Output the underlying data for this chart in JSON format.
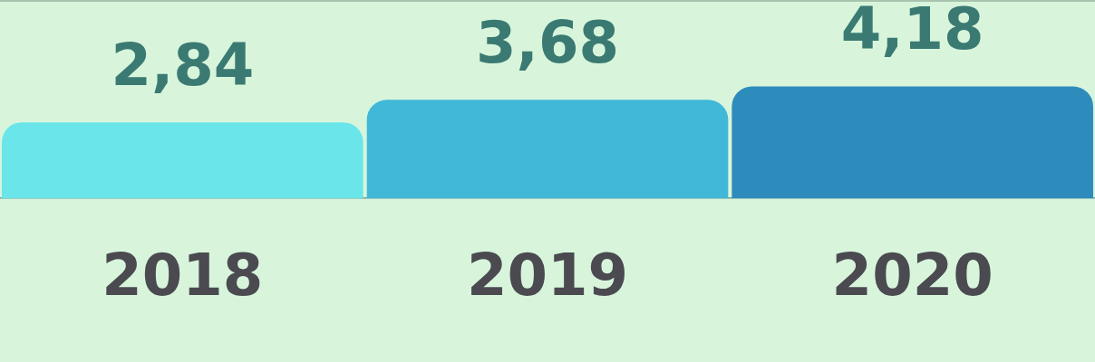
{
  "chart_data": {
    "type": "bar",
    "categories": [
      "2018",
      "2019",
      "2020"
    ],
    "values": [
      2.84,
      3.68,
      4.18
    ],
    "colors": [
      "#6ae6ea",
      "#42b8d8",
      "#2e8cbc"
    ],
    "value_labels": [
      "2,84",
      "3,68",
      "4,18"
    ],
    "grid": false,
    "legend": false
  }
}
